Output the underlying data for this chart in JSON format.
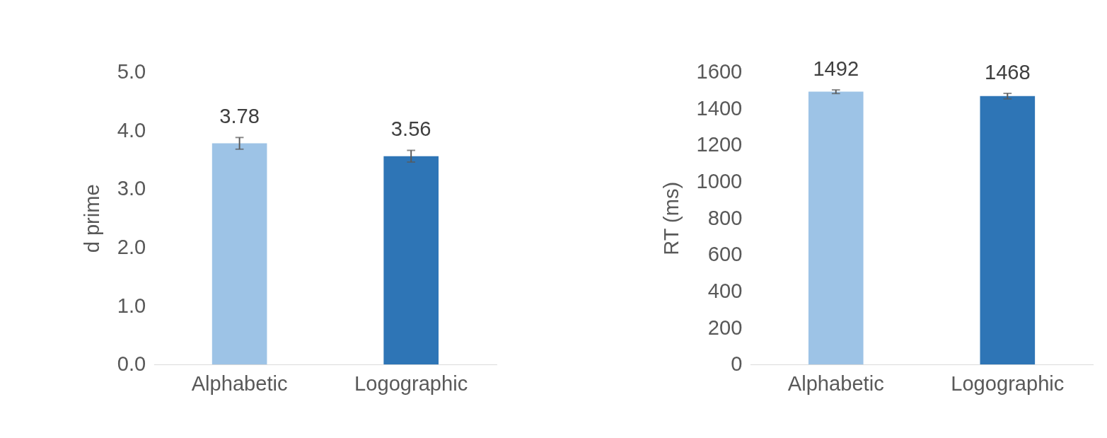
{
  "chart_data": [
    {
      "type": "bar",
      "ylabel": "d prime",
      "categories": [
        "Alphabetic",
        "Logographic"
      ],
      "values": [
        3.78,
        3.56
      ],
      "colors": [
        "#9dc3e6",
        "#2e75b6"
      ],
      "errors": [
        0.1,
        0.1
      ],
      "ylim": [
        0,
        5
      ],
      "yticks": [
        {
          "value": 0,
          "label": "0.0"
        },
        {
          "value": 1,
          "label": "1.0"
        },
        {
          "value": 2,
          "label": "2.0"
        },
        {
          "value": 3,
          "label": "3.0"
        },
        {
          "value": 4,
          "label": "4.0"
        },
        {
          "value": 5,
          "label": "5.0"
        }
      ],
      "data_labels": true,
      "grid": false
    },
    {
      "type": "bar",
      "ylabel": "RT (ms)",
      "categories": [
        "Alphabetic",
        "Logographic"
      ],
      "values": [
        1492,
        1468
      ],
      "colors": [
        "#9dc3e6",
        "#2e75b6"
      ],
      "errors": [
        10,
        15
      ],
      "ylim": [
        0,
        1600
      ],
      "yticks": [
        0,
        200,
        400,
        600,
        800,
        1000,
        1200,
        1400,
        1600
      ],
      "data_labels": true,
      "grid": false
    }
  ]
}
